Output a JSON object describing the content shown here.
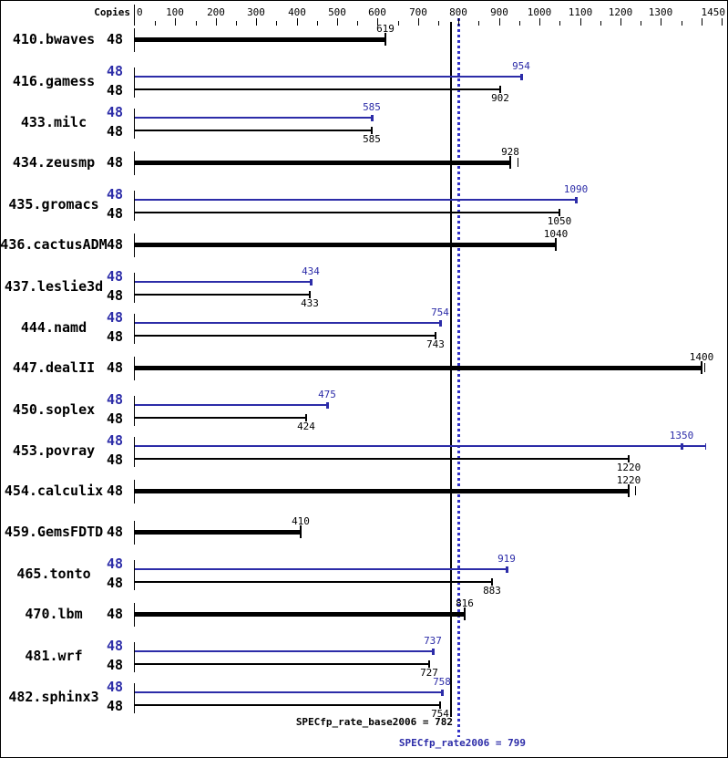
{
  "colors": {
    "bar_base": "#000000",
    "bar_peak": "#2c2ca8",
    "reference_base_line": "#000000",
    "reference_peak_line": "#3232c8"
  },
  "header": {
    "copies_label": "Copies"
  },
  "summary": {
    "base_text": "SPECfp_rate_base2006 = 782",
    "peak_text": "SPECfp_rate2006 = 799"
  },
  "chart_data": {
    "type": "bar",
    "orientation": "horizontal",
    "axis": {
      "min": 0,
      "max": 1450,
      "minor_step": 50,
      "major_step": 100,
      "labeled_ticks": [
        0,
        100,
        200,
        300,
        400,
        500,
        600,
        700,
        800,
        900,
        1000,
        1100,
        1200,
        1300,
        1450
      ],
      "position": "top"
    },
    "copies_column_header": "Copies",
    "benchmarks": [
      {
        "name": "410.bwaves",
        "copies": 48,
        "peak": null,
        "base": 619
      },
      {
        "name": "416.gamess",
        "copies": 48,
        "peak": 954,
        "base": 902
      },
      {
        "name": "433.milc",
        "copies": 48,
        "peak": 585,
        "base": 585
      },
      {
        "name": "434.zeusmp",
        "copies": 48,
        "peak": null,
        "base": 928,
        "run_marks": [
          945
        ]
      },
      {
        "name": "435.gromacs",
        "copies": 48,
        "peak": 1090,
        "base": 1050
      },
      {
        "name": "436.cactusADM",
        "copies": 48,
        "peak": null,
        "base": 1040
      },
      {
        "name": "437.leslie3d",
        "copies": 48,
        "peak": 434,
        "base": 433
      },
      {
        "name": "444.namd",
        "copies": 48,
        "peak": 754,
        "base": 743
      },
      {
        "name": "447.dealII",
        "copies": 48,
        "peak": null,
        "base": 1400,
        "run_marks": [
          1407
        ]
      },
      {
        "name": "450.soplex",
        "copies": 48,
        "peak": 475,
        "base": 424
      },
      {
        "name": "453.povray",
        "copies": 48,
        "peak": 1350,
        "base": 1220,
        "peak_bar_to": 1410
      },
      {
        "name": "454.calculix",
        "copies": 48,
        "peak": null,
        "base": 1220,
        "run_marks": [
          1237
        ]
      },
      {
        "name": "459.GemsFDTD",
        "copies": 48,
        "peak": null,
        "base": 410
      },
      {
        "name": "465.tonto",
        "copies": 48,
        "peak": 919,
        "base": 883
      },
      {
        "name": "470.lbm",
        "copies": 48,
        "peak": null,
        "base": 816
      },
      {
        "name": "481.wrf",
        "copies": 48,
        "peak": 737,
        "base": 727
      },
      {
        "name": "482.sphinx3",
        "copies": 48,
        "peak": 758,
        "base": 754
      }
    ],
    "reference_lines": [
      {
        "name": "SPECfp_rate_base2006",
        "value": 782,
        "style": "solid",
        "color": "#000000"
      },
      {
        "name": "SPECfp_rate2006",
        "value": 799,
        "style": "dotted",
        "color": "#3232c8"
      }
    ],
    "summary": {
      "SPECfp_rate_base2006": 782,
      "SPECfp_rate2006": 799
    }
  }
}
